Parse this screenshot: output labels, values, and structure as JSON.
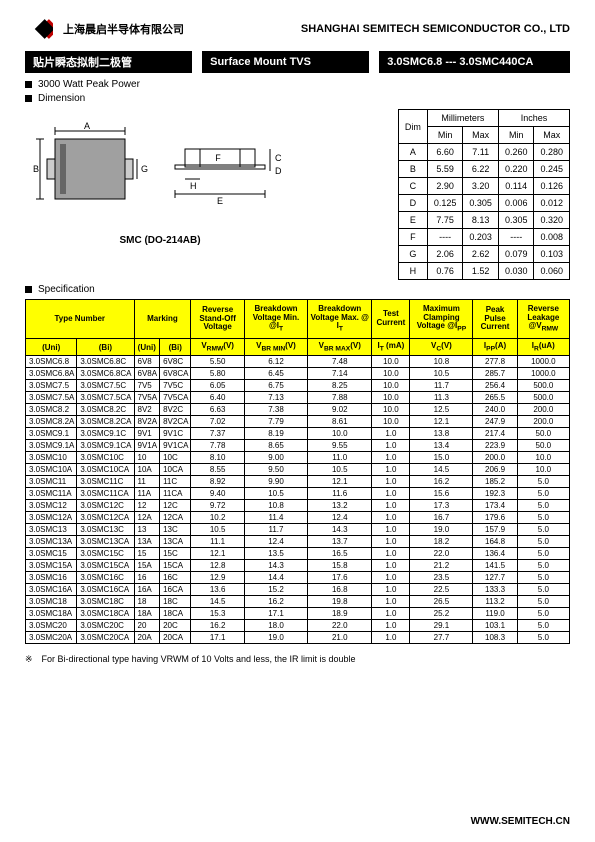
{
  "header": {
    "cn_company": "上海晨启半导体有限公司",
    "en_company": "SHANGHAI SEMITECH SEMICONDUCTOR CO., LTD"
  },
  "title": {
    "cn": "贴片瞬态拟制二极管",
    "en": "Surface Mount TVS",
    "part": "3.0SMC6.8 --- 3.0SMC440CA"
  },
  "features": {
    "power": "3000 Watt Peak Power",
    "dimension": "Dimension",
    "specification": "Specification"
  },
  "package_label": "SMC (DO-214AB)",
  "dim_headers": {
    "dim": "Dim",
    "mm": "Millimeters",
    "in": "Inches",
    "min": "Min",
    "max": "Max"
  },
  "dims": [
    {
      "d": "A",
      "mmin": "6.60",
      "mmax": "7.11",
      "imin": "0.260",
      "imax": "0.280"
    },
    {
      "d": "B",
      "mmin": "5.59",
      "mmax": "6.22",
      "imin": "0.220",
      "imax": "0.245"
    },
    {
      "d": "C",
      "mmin": "2.90",
      "mmax": "3.20",
      "imin": "0.114",
      "imax": "0.126"
    },
    {
      "d": "D",
      "mmin": "0.125",
      "mmax": "0.305",
      "imin": "0.006",
      "imax": "0.012"
    },
    {
      "d": "E",
      "mmin": "7.75",
      "mmax": "8.13",
      "imin": "0.305",
      "imax": "0.320"
    },
    {
      "d": "F",
      "mmin": "----",
      "mmax": "0.203",
      "imin": "----",
      "imax": "0.008"
    },
    {
      "d": "G",
      "mmin": "2.06",
      "mmax": "2.62",
      "imin": "0.079",
      "imax": "0.103"
    },
    {
      "d": "H",
      "mmin": "0.76",
      "mmax": "1.52",
      "imin": "0.030",
      "imax": "0.060"
    }
  ],
  "spec_headers": {
    "type": "Type Number",
    "marking": "Marking",
    "vrwm": "Reverse Stand-Off Voltage",
    "vbrmin": "Breakdown Voltage Min. @I",
    "vbrmax": "Breakdown Voltage Max. @ I",
    "it": "Test Current",
    "vc": "Maximum Clamping Voltage @I",
    "ipp": "Peak Pulse Current",
    "ir": "Reverse Leakage @V",
    "uni": "(Uni)",
    "bi": "(Bi)",
    "vrwm_u": "V",
    "vbrmin_u": "V",
    "vbrmax_u": "V",
    "it_u": "I",
    "vc_u": "V",
    "ipp_u": "I",
    "ir_u": "I",
    "rmw": "RMW",
    "brmin": "BR MIN",
    "brmax": "BR MAX",
    "t": "T",
    "c": "C",
    "pp": "PP",
    "r": "R",
    "v": "(V)",
    "ma": "(mA)",
    "a": "(A)",
    "ua": "(uA)"
  },
  "spec_rows": [
    [
      "3.0SMC6.8",
      "3.0SMC6.8C",
      "6V8",
      "6V8C",
      "5.50",
      "6.12",
      "7.48",
      "10.0",
      "10.8",
      "277.8",
      "1000.0"
    ],
    [
      "3.0SMC6.8A",
      "3.0SMC6.8CA",
      "6V8A",
      "6V8CA",
      "5.80",
      "6.45",
      "7.14",
      "10.0",
      "10.5",
      "285.7",
      "1000.0"
    ],
    [
      "3.0SMC7.5",
      "3.0SMC7.5C",
      "7V5",
      "7V5C",
      "6.05",
      "6.75",
      "8.25",
      "10.0",
      "11.7",
      "256.4",
      "500.0"
    ],
    [
      "3.0SMC7.5A",
      "3.0SMC7.5CA",
      "7V5A",
      "7V5CA",
      "6.40",
      "7.13",
      "7.88",
      "10.0",
      "11.3",
      "265.5",
      "500.0"
    ],
    [
      "3.0SMC8.2",
      "3.0SMC8.2C",
      "8V2",
      "8V2C",
      "6.63",
      "7.38",
      "9.02",
      "10.0",
      "12.5",
      "240.0",
      "200.0"
    ],
    [
      "3.0SMC8.2A",
      "3.0SMC8.2CA",
      "8V2A",
      "8V2CA",
      "7.02",
      "7.79",
      "8.61",
      "10.0",
      "12.1",
      "247.9",
      "200.0"
    ],
    [
      "3.0SMC9.1",
      "3.0SMC9.1C",
      "9V1",
      "9V1C",
      "7.37",
      "8.19",
      "10.0",
      "1.0",
      "13.8",
      "217.4",
      "50.0"
    ],
    [
      "3.0SMC9.1A",
      "3.0SMC9.1CA",
      "9V1A",
      "9V1CA",
      "7.78",
      "8.65",
      "9.55",
      "1.0",
      "13.4",
      "223.9",
      "50.0"
    ],
    [
      "3.0SMC10",
      "3.0SMC10C",
      "10",
      "10C",
      "8.10",
      "9.00",
      "11.0",
      "1.0",
      "15.0",
      "200.0",
      "10.0"
    ],
    [
      "3.0SMC10A",
      "3.0SMC10CA",
      "10A",
      "10CA",
      "8.55",
      "9.50",
      "10.5",
      "1.0",
      "14.5",
      "206.9",
      "10.0"
    ],
    [
      "3.0SMC11",
      "3.0SMC11C",
      "11",
      "11C",
      "8.92",
      "9.90",
      "12.1",
      "1.0",
      "16.2",
      "185.2",
      "5.0"
    ],
    [
      "3.0SMC11A",
      "3.0SMC11CA",
      "11A",
      "11CA",
      "9.40",
      "10.5",
      "11.6",
      "1.0",
      "15.6",
      "192.3",
      "5.0"
    ],
    [
      "3.0SMC12",
      "3.0SMC12C",
      "12",
      "12C",
      "9.72",
      "10.8",
      "13.2",
      "1.0",
      "17.3",
      "173.4",
      "5.0"
    ],
    [
      "3.0SMC12A",
      "3.0SMC12CA",
      "12A",
      "12CA",
      "10.2",
      "11.4",
      "12.4",
      "1.0",
      "16.7",
      "179.6",
      "5.0"
    ],
    [
      "3.0SMC13",
      "3.0SMC13C",
      "13",
      "13C",
      "10.5",
      "11.7",
      "14.3",
      "1.0",
      "19.0",
      "157.9",
      "5.0"
    ],
    [
      "3.0SMC13A",
      "3.0SMC13CA",
      "13A",
      "13CA",
      "11.1",
      "12.4",
      "13.7",
      "1.0",
      "18.2",
      "164.8",
      "5.0"
    ],
    [
      "3.0SMC15",
      "3.0SMC15C",
      "15",
      "15C",
      "12.1",
      "13.5",
      "16.5",
      "1.0",
      "22.0",
      "136.4",
      "5.0"
    ],
    [
      "3.0SMC15A",
      "3.0SMC15CA",
      "15A",
      "15CA",
      "12.8",
      "14.3",
      "15.8",
      "1.0",
      "21.2",
      "141.5",
      "5.0"
    ],
    [
      "3.0SMC16",
      "3.0SMC16C",
      "16",
      "16C",
      "12.9",
      "14.4",
      "17.6",
      "1.0",
      "23.5",
      "127.7",
      "5.0"
    ],
    [
      "3.0SMC16A",
      "3.0SMC16CA",
      "16A",
      "16CA",
      "13.6",
      "15.2",
      "16.8",
      "1.0",
      "22.5",
      "133.3",
      "5.0"
    ],
    [
      "3.0SMC18",
      "3.0SMC18C",
      "18",
      "18C",
      "14.5",
      "16.2",
      "19.8",
      "1.0",
      "26.5",
      "113.2",
      "5.0"
    ],
    [
      "3.0SMC18A",
      "3.0SMC18CA",
      "18A",
      "18CA",
      "15.3",
      "17.1",
      "18.9",
      "1.0",
      "25.2",
      "119.0",
      "5.0"
    ],
    [
      "3.0SMC20",
      "3.0SMC20C",
      "20",
      "20C",
      "16.2",
      "18.0",
      "22.0",
      "1.0",
      "29.1",
      "103.1",
      "5.0"
    ],
    [
      "3.0SMC20A",
      "3.0SMC20CA",
      "20A",
      "20CA",
      "17.1",
      "19.0",
      "21.0",
      "1.0",
      "27.7",
      "108.3",
      "5.0"
    ]
  ],
  "footnote": "※　For Bi-directional type having VRWM of 10 Volts and less, the IR limit is double",
  "footer": "WWW.SEMITECH.CN"
}
